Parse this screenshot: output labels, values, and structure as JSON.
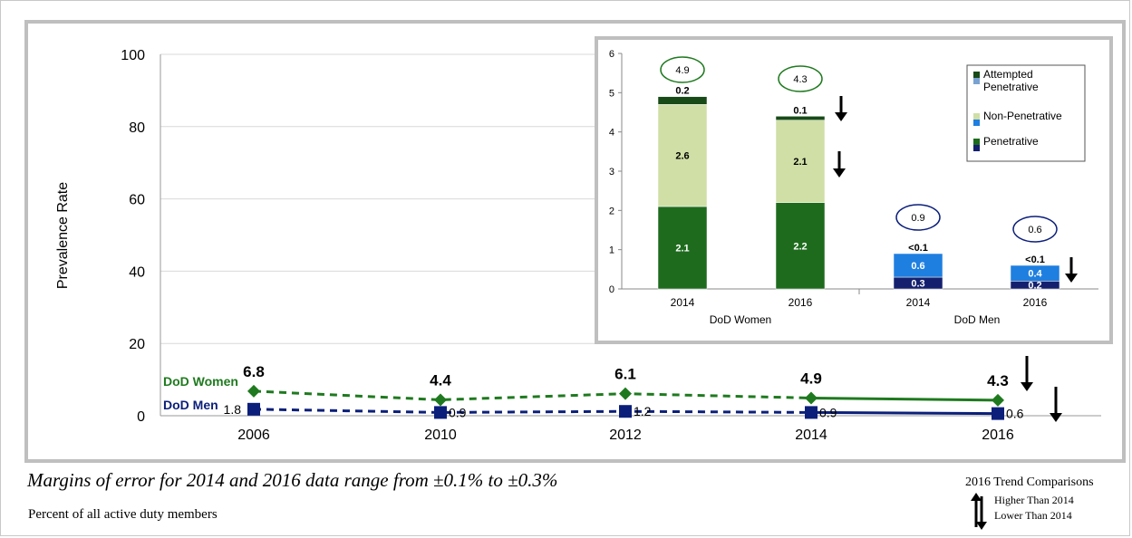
{
  "chart_data": [
    {
      "type": "line",
      "ylabel": "Prevalence Rate",
      "ylim": [
        0,
        100
      ],
      "yticks": [
        "0",
        "20",
        "40",
        "60",
        "80",
        "100"
      ],
      "categories": [
        "2006",
        "2010",
        "2012",
        "2014",
        "2016"
      ],
      "series": [
        {
          "name": "DoD Women",
          "values": [
            6.8,
            4.4,
            6.1,
            4.9,
            4.3
          ],
          "labels": [
            "6.8",
            "4.4",
            "6.1",
            "4.9",
            "4.3"
          ],
          "color": "#1f7a1f",
          "marker": "diamond"
        },
        {
          "name": "DoD Men",
          "values": [
            1.8,
            0.9,
            1.2,
            0.9,
            0.6
          ],
          "labels": [
            "1.8",
            "0.9",
            "1.2",
            "0.9",
            "0.6"
          ],
          "color": "#0b1f7a",
          "marker": "square"
        }
      ],
      "grid": "horizontal"
    },
    {
      "type": "bar",
      "stacked": true,
      "ylim": [
        0,
        6
      ],
      "yticks": [
        "0",
        "1",
        "2",
        "3",
        "4",
        "5",
        "6"
      ],
      "categories": [
        "2014",
        "2016",
        "2014",
        "2016"
      ],
      "groups": [
        {
          "name": "DoD Women",
          "span": [
            0,
            1
          ]
        },
        {
          "name": "DoD Men",
          "span": [
            2,
            3
          ]
        }
      ],
      "totals": [
        "4.9",
        "4.3",
        "0.9",
        "0.6"
      ],
      "bars": [
        {
          "segments": [
            {
              "type": "Penetrative",
              "value": 2.1,
              "label": "2.1",
              "color": "#1e6b1e"
            },
            {
              "type": "Non-Penetrative",
              "value": 2.6,
              "label": "2.6",
              "color": "#cfdfa6"
            },
            {
              "type": "Attempted Penetrative",
              "value": 0.2,
              "label": "0.2",
              "color": "#174a17"
            }
          ]
        },
        {
          "segments": [
            {
              "type": "Penetrative",
              "value": 2.2,
              "label": "2.2",
              "color": "#1e6b1e"
            },
            {
              "type": "Non-Penetrative",
              "value": 2.1,
              "label": "2.1",
              "color": "#cfdfa6"
            },
            {
              "type": "Attempted Penetrative",
              "value": 0.1,
              "label": "0.1",
              "color": "#174a17"
            }
          ]
        },
        {
          "segments": [
            {
              "type": "Penetrative",
              "value": 0.3,
              "label": "0.3",
              "color": "#14206e"
            },
            {
              "type": "Non-Penetrative",
              "value": 0.6,
              "label": "0.6",
              "color": "#1e7fe0"
            },
            {
              "type": "Attempted Penetrative",
              "value": 0.0,
              "label": "<0.1",
              "color": "#7aa2d0"
            }
          ]
        },
        {
          "segments": [
            {
              "type": "Penetrative",
              "value": 0.2,
              "label": "0.2",
              "color": "#14206e"
            },
            {
              "type": "Non-Penetrative",
              "value": 0.4,
              "label": "0.4",
              "color": "#1e7fe0"
            },
            {
              "type": "Attempted Penetrative",
              "value": 0.0,
              "label": "<0.1",
              "color": "#7aa2d0"
            }
          ]
        }
      ],
      "legend": {
        "position": "top-right",
        "entries": [
          {
            "label_lines": [
              "Attempted",
              "Penetrative"
            ],
            "colors": [
              "#174a17",
              "#7aa2d0"
            ]
          },
          {
            "label_lines": [
              "Non-Penetrative"
            ],
            "colors": [
              "#cfdfa6",
              "#1e7fe0"
            ]
          },
          {
            "label_lines": [
              "Penetrative"
            ],
            "colors": [
              "#1e6b1e",
              "#14206e"
            ]
          }
        ]
      },
      "trend_arrows": [
        {
          "bar": 1,
          "segment": "Attempted Penetrative",
          "direction": "down"
        },
        {
          "bar": 1,
          "segment": "Non-Penetrative",
          "direction": "down"
        },
        {
          "bar": 3,
          "segment": "Non-Penetrative",
          "direction": "down"
        }
      ]
    }
  ],
  "main_trend_arrows": [
    {
      "series": "DoD Women",
      "category": "2016",
      "direction": "down"
    },
    {
      "series": "DoD Men",
      "category": "2016",
      "direction": "down"
    }
  ],
  "footnote_italic": "Margins of error for 2014 and 2016 data range from ±0.1% to ±0.3%",
  "footnote": "Percent of all active duty members",
  "trend_key": {
    "title": "2016 Trend Comparisons",
    "higher": "Higher Than  2014",
    "lower": "Lower Than  2014"
  }
}
